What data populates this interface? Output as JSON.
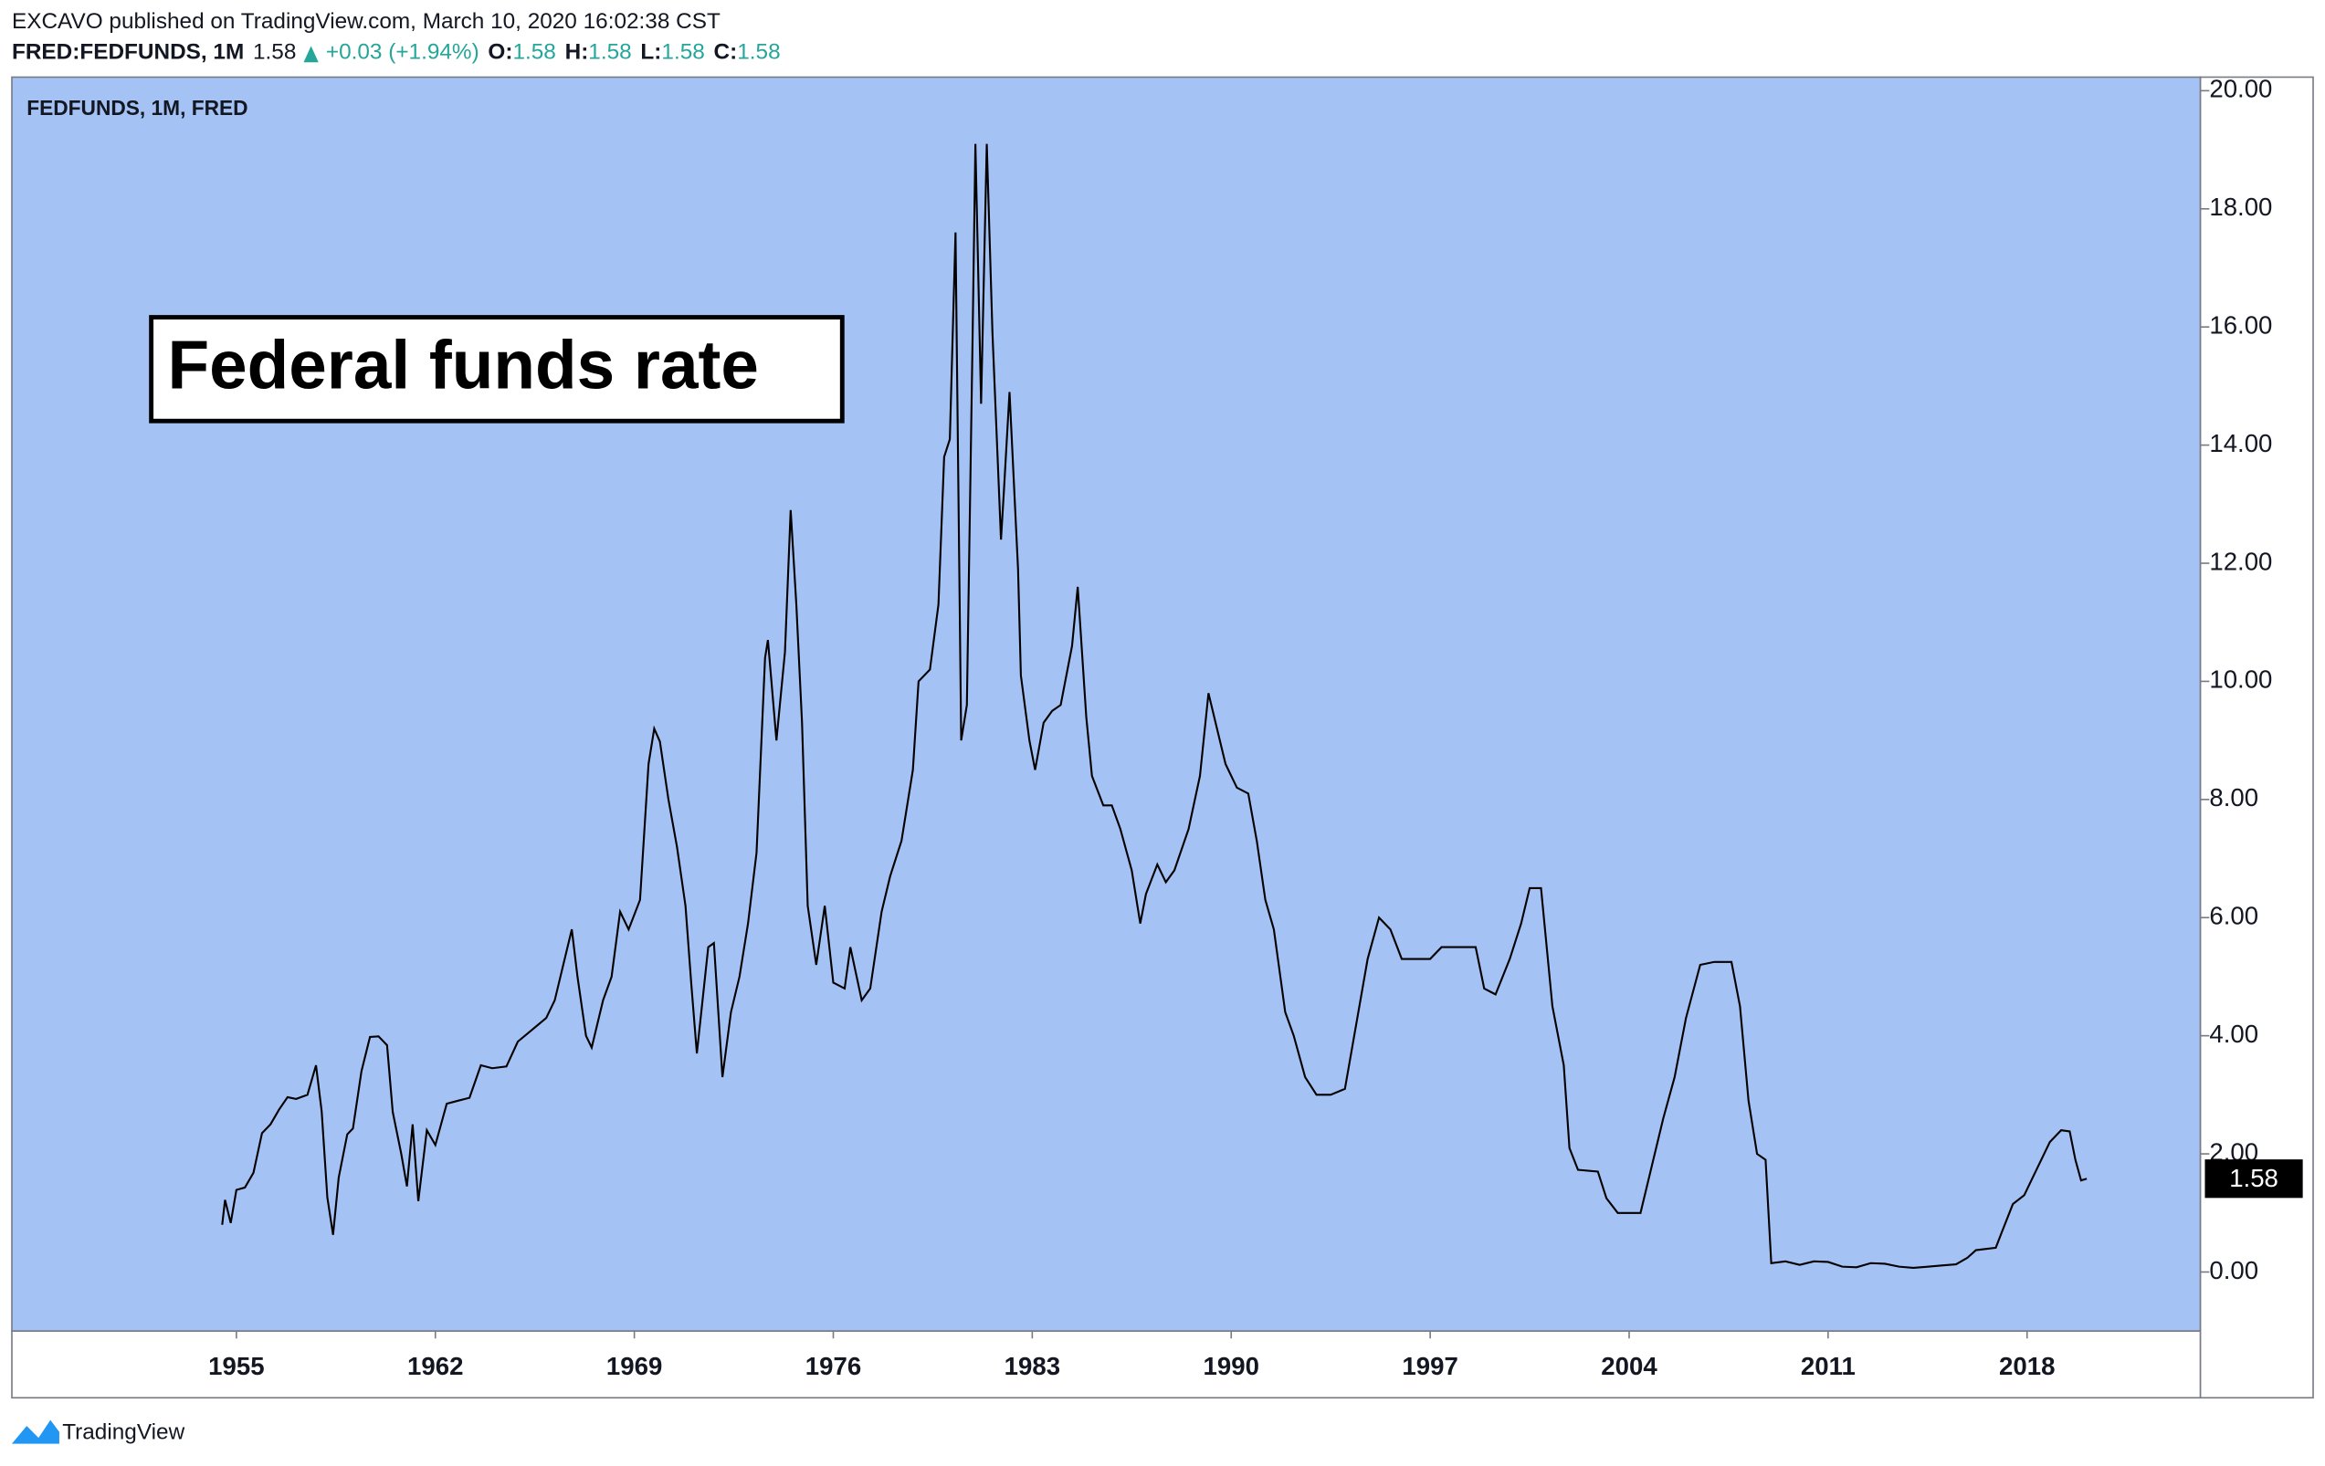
{
  "header": {
    "published": "EXCAVO published on TradingView.com, March 10, 2020 16:02:38 CST",
    "symbol": "FRED:FEDFUNDS, 1M",
    "last": 1.58,
    "change": "+0.03 (+1.94%)",
    "ohlc": [
      {
        "label": "O:",
        "value": 1.58
      },
      {
        "label": "H:",
        "value": 1.58
      },
      {
        "label": "L:",
        "value": 1.58
      },
      {
        "label": "C:",
        "value": 1.58
      }
    ]
  },
  "footer": {
    "brand": "TradingView"
  },
  "chart_data": {
    "type": "line",
    "background": "#a4c2f4",
    "annotation": "Federal funds rate",
    "x": [
      1954.5,
      1954.6,
      1954.8,
      1955.0,
      1955.3,
      1955.6,
      1955.9,
      1956.2,
      1956.5,
      1956.8,
      1957.1,
      1957.5,
      1957.8,
      1958.0,
      1958.2,
      1958.4,
      1958.6,
      1958.9,
      1959.1,
      1959.4,
      1959.7,
      1960.0,
      1960.3,
      1960.5,
      1960.8,
      1961.0,
      1961.2,
      1961.4,
      1961.7,
      1962.0,
      1962.4,
      1962.8,
      1963.2,
      1963.6,
      1964.0,
      1964.5,
      1964.9,
      1965.4,
      1965.9,
      1966.2,
      1966.6,
      1966.8,
      1967.0,
      1967.3,
      1967.5,
      1967.9,
      1968.2,
      1968.5,
      1968.8,
      1969.2,
      1969.5,
      1969.7,
      1969.9,
      1970.2,
      1970.5,
      1970.8,
      1971.0,
      1971.2,
      1971.6,
      1971.8,
      1972.1,
      1972.4,
      1972.7,
      1973.0,
      1973.3,
      1973.6,
      1973.7,
      1974.0,
      1974.3,
      1974.5,
      1974.7,
      1974.9,
      1975.1,
      1975.4,
      1975.7,
      1976.0,
      1976.4,
      1976.6,
      1977.0,
      1977.3,
      1977.7,
      1978.0,
      1978.4,
      1978.8,
      1979.0,
      1979.4,
      1979.7,
      1979.9,
      1980.1,
      1980.3,
      1980.5,
      1980.7,
      1980.9,
      1981.0,
      1981.2,
      1981.4,
      1981.6,
      1981.9,
      1982.0,
      1982.2,
      1982.5,
      1982.6,
      1982.9,
      1983.1,
      1983.4,
      1983.7,
      1984.0,
      1984.4,
      1984.6,
      1984.9,
      1985.1,
      1985.5,
      1985.8,
      1986.1,
      1986.5,
      1986.8,
      1987.0,
      1987.4,
      1987.7,
      1988.0,
      1988.5,
      1988.9,
      1989.2,
      1989.5,
      1989.8,
      1990.2,
      1990.6,
      1990.9,
      1991.2,
      1991.5,
      1991.9,
      1992.2,
      1992.6,
      1993.0,
      1993.5,
      1994.0,
      1994.4,
      1994.8,
      1995.2,
      1995.6,
      1996.0,
      1996.5,
      1997.0,
      1997.4,
      1998.0,
      1998.6,
      1998.9,
      1999.3,
      1999.8,
      2000.2,
      2000.5,
      2000.9,
      2001.3,
      2001.7,
      2001.9,
      2002.2,
      2002.9,
      2003.2,
      2003.6,
      2004.4,
      2004.8,
      2005.2,
      2005.6,
      2006.0,
      2006.5,
      2007.0,
      2007.6,
      2007.9,
      2008.2,
      2008.5,
      2008.8,
      2009.0,
      2009.5,
      2010.0,
      2010.5,
      2011.0,
      2011.5,
      2012.0,
      2012.5,
      2013.0,
      2013.5,
      2014.0,
      2014.5,
      2015.0,
      2015.5,
      2015.9,
      2016.2,
      2016.9,
      2017.1,
      2017.5,
      2017.9,
      2018.3,
      2018.8,
      2019.2,
      2019.5,
      2019.7,
      2019.9,
      2020.1
    ],
    "series": [
      {
        "name": "FEDFUNDS, 1M, FRED",
        "color": "#000000",
        "values": [
          0.8,
          1.22,
          0.83,
          1.39,
          1.43,
          1.68,
          2.35,
          2.5,
          2.75,
          2.96,
          2.93,
          3.0,
          3.5,
          2.72,
          1.26,
          0.63,
          1.6,
          2.33,
          2.43,
          3.4,
          3.98,
          3.99,
          3.84,
          2.71,
          2.0,
          1.45,
          2.5,
          1.2,
          2.4,
          2.15,
          2.85,
          2.9,
          2.95,
          3.5,
          3.45,
          3.48,
          3.9,
          4.1,
          4.3,
          4.6,
          5.4,
          5.8,
          5.0,
          4.0,
          3.8,
          4.6,
          5.0,
          6.1,
          5.8,
          6.3,
          8.6,
          9.2,
          8.98,
          8.0,
          7.2,
          6.2,
          4.9,
          3.7,
          5.5,
          5.57,
          3.3,
          4.4,
          5.0,
          5.9,
          7.1,
          10.4,
          10.7,
          9.0,
          10.5,
          12.9,
          11.3,
          9.3,
          6.2,
          5.2,
          6.2,
          4.9,
          4.8,
          5.5,
          4.6,
          4.8,
          6.1,
          6.7,
          7.3,
          8.5,
          10.0,
          10.2,
          11.3,
          13.8,
          14.1,
          17.6,
          9.0,
          9.6,
          15.8,
          19.1,
          14.7,
          19.1,
          15.9,
          12.4,
          13.2,
          14.9,
          11.9,
          10.1,
          9.0,
          8.5,
          9.3,
          9.5,
          9.6,
          10.6,
          11.6,
          9.4,
          8.4,
          7.9,
          7.9,
          7.5,
          6.8,
          5.9,
          6.4,
          6.9,
          6.6,
          6.8,
          7.5,
          8.4,
          9.8,
          9.2,
          8.6,
          8.2,
          8.1,
          7.3,
          6.3,
          5.8,
          4.4,
          4.0,
          3.3,
          3.0,
          3.0,
          3.1,
          4.2,
          5.3,
          6.0,
          5.8,
          5.3,
          5.3,
          5.3,
          5.5,
          5.5,
          5.5,
          4.8,
          4.7,
          5.3,
          5.9,
          6.5,
          6.5,
          4.5,
          3.5,
          2.1,
          1.73,
          1.7,
          1.25,
          1.0,
          1.0,
          1.8,
          2.6,
          3.3,
          4.3,
          5.2,
          5.25,
          5.25,
          4.5,
          2.9,
          2.0,
          1.9,
          0.15,
          0.18,
          0.12,
          0.18,
          0.17,
          0.09,
          0.08,
          0.15,
          0.14,
          0.09,
          0.07,
          0.09,
          0.11,
          0.13,
          0.24,
          0.37,
          0.41,
          0.66,
          1.15,
          1.3,
          1.7,
          2.2,
          2.4,
          2.38,
          1.9,
          1.55,
          1.58
        ]
      }
    ],
    "xlim": [
      1947.1,
      2024.1
    ],
    "ylim": [
      -1.0,
      20.23
    ],
    "xticks": [
      1955,
      1962,
      1969,
      1976,
      1983,
      1990,
      1997,
      2004,
      2011,
      2018
    ],
    "yticks": [
      {
        "value": 0,
        "label": "0.00"
      },
      {
        "value": 2,
        "label": "2.00"
      },
      {
        "value": 4,
        "label": "4.00"
      },
      {
        "value": 6,
        "label": "6.00"
      },
      {
        "value": 8,
        "label": "8.00"
      },
      {
        "value": 10,
        "label": "10.00"
      },
      {
        "value": 12,
        "label": "12.00"
      },
      {
        "value": 14,
        "label": "14.00"
      },
      {
        "value": 16,
        "label": "16.00"
      },
      {
        "value": 18,
        "label": "18.00"
      },
      {
        "value": 20,
        "label": "20.00"
      }
    ]
  }
}
